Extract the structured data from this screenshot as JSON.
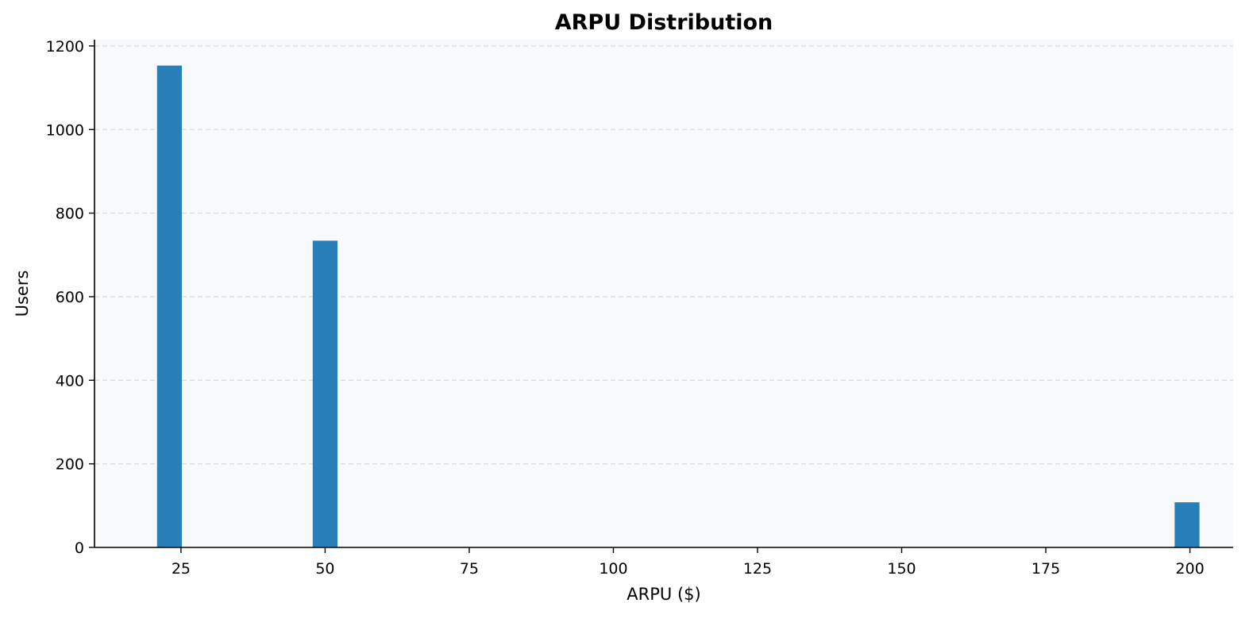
{
  "chart_data": {
    "type": "bar",
    "title": "ARPU Distribution",
    "xlabel": "ARPU ($)",
    "ylabel": "Users",
    "xlim": [
      10,
      207.5
    ],
    "ylim": [
      0,
      1215
    ],
    "xticks": [
      25,
      50,
      75,
      100,
      125,
      150,
      175,
      200
    ],
    "yticks": [
      0,
      200,
      400,
      600,
      800,
      1000,
      1200
    ],
    "bin_width": 4.3,
    "bins": [
      {
        "x": 23.0,
        "value": 1153
      },
      {
        "x": 50.0,
        "value": 734
      },
      {
        "x": 199.5,
        "value": 108
      }
    ],
    "grid": {
      "y": true,
      "x": false,
      "style": "dashed"
    },
    "colors": {
      "bar": "#2980b9",
      "plot_background": "#f8f9fb",
      "grid": "#dcdcdc",
      "axis": "#000000"
    }
  }
}
